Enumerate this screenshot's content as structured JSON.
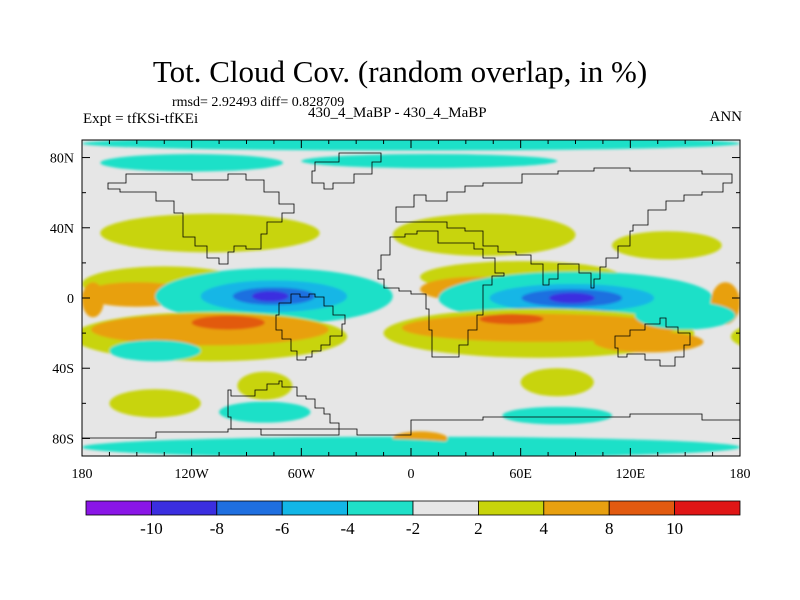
{
  "chart_data": {
    "type": "heatmap",
    "title": "Tot. Cloud Cov. (random overlap, in %)",
    "stats_text": "rmsd= 2.92493 diff= 0.828709",
    "expt_text": "Expt = tfKSi-tfKEi",
    "cases_text": "430_4_MaBP - 430_4_MaBP",
    "season": "ANN",
    "rmsd": 2.92493,
    "diff": 0.828709,
    "x_range": [
      -180,
      180
    ],
    "y_range": [
      -90,
      90
    ],
    "x_ticks": [
      -180,
      -120,
      -60,
      0,
      60,
      120,
      180
    ],
    "x_tick_labels": [
      "180",
      "120W",
      "60W",
      "0",
      "60E",
      "120E",
      "180"
    ],
    "y_ticks": [
      80,
      40,
      0,
      -40,
      -80
    ],
    "y_tick_labels": [
      "80N",
      "40N",
      "0",
      "40S",
      "80S"
    ],
    "colorbar": {
      "levels": [
        -10,
        -8,
        -6,
        -4,
        -2,
        2,
        4,
        8,
        10
      ],
      "labels": [
        "-10",
        "-8",
        "-6",
        "-4",
        "-2",
        "2",
        "4",
        "8",
        "10"
      ],
      "colors": [
        "#8a16e6",
        "#3b2ee0",
        "#1f6fe0",
        "#12b6e6",
        "#1fe0c8",
        "#e6e6e6",
        "#c8d40a",
        "#e8a010",
        "#e25a10",
        "#e01616"
      ]
    },
    "features": [
      {
        "name": "polar-south-band",
        "lon": 0,
        "lat": -85,
        "w": 360,
        "h": 6,
        "value": -3
      },
      {
        "name": "north-arctic-band",
        "lon": 0,
        "lat": 88,
        "w": 360,
        "h": 4,
        "value": -3
      },
      {
        "name": "north-band-west",
        "lon": -120,
        "lat": 77,
        "w": 100,
        "h": 5,
        "value": -3
      },
      {
        "name": "north-band-mid",
        "lon": 10,
        "lat": 78,
        "w": 140,
        "h": 4,
        "value": -3
      },
      {
        "name": "nh-yellow-west",
        "lon": -110,
        "lat": 37,
        "w": 120,
        "h": 11,
        "value": 3
      },
      {
        "name": "nh-yellow-east",
        "lon": 40,
        "lat": 36,
        "w": 100,
        "h": 12,
        "value": 3
      },
      {
        "name": "nh-yellow-pacific",
        "lon": 140,
        "lat": 30,
        "w": 60,
        "h": 8,
        "value": 3
      },
      {
        "name": "n-yellow-tropic-west",
        "lon": -135,
        "lat": 8,
        "w": 90,
        "h": 10,
        "value": 3
      },
      {
        "name": "n-yellow-tropic-east",
        "lon": 60,
        "lat": 12,
        "w": 110,
        "h": 9,
        "value": 3
      },
      {
        "name": "n-orange-west",
        "lon": -150,
        "lat": 2,
        "w": 60,
        "h": 7,
        "value": 6
      },
      {
        "name": "n-orange-east",
        "lon": 35,
        "lat": 5,
        "w": 60,
        "h": 7,
        "value": 6
      },
      {
        "name": "eq-cyan-west",
        "lon": -75,
        "lat": 1,
        "w": 130,
        "h": 16,
        "value": -3
      },
      {
        "name": "eq-lightblue-west",
        "lon": -75,
        "lat": 1,
        "w": 80,
        "h": 9,
        "value": -5
      },
      {
        "name": "eq-blue-west",
        "lon": -75,
        "lat": 1,
        "w": 45,
        "h": 5,
        "value": -7
      },
      {
        "name": "eq-darkblue-west",
        "lon": -77,
        "lat": 1,
        "w": 20,
        "h": 3,
        "value": -9
      },
      {
        "name": "eq-cyan-east",
        "lon": 90,
        "lat": 0,
        "w": 150,
        "h": 15,
        "value": -3
      },
      {
        "name": "eq-lightblue-east",
        "lon": 88,
        "lat": 0,
        "w": 90,
        "h": 8,
        "value": -5
      },
      {
        "name": "eq-blue-east",
        "lon": 88,
        "lat": 0,
        "w": 55,
        "h": 5,
        "value": -7
      },
      {
        "name": "eq-darkblue-east",
        "lon": 88,
        "lat": 0,
        "w": 25,
        "h": 3,
        "value": -9
      },
      {
        "name": "s-yellow-west",
        "lon": -110,
        "lat": -22,
        "w": 150,
        "h": 14,
        "value": 3
      },
      {
        "name": "s-orange-west",
        "lon": -110,
        "lat": -18,
        "w": 130,
        "h": 9,
        "value": 6
      },
      {
        "name": "s-red-west",
        "lon": -100,
        "lat": -14,
        "w": 40,
        "h": 4,
        "value": 9
      },
      {
        "name": "s-yellow-east",
        "lon": 70,
        "lat": -20,
        "w": 170,
        "h": 14,
        "value": 3
      },
      {
        "name": "s-orange-east",
        "lon": 70,
        "lat": -17,
        "w": 150,
        "h": 8,
        "value": 6
      },
      {
        "name": "s-red-east",
        "lon": 55,
        "lat": -12,
        "w": 35,
        "h": 3,
        "value": 9
      },
      {
        "name": "se-orange-strip",
        "lon": 130,
        "lat": -25,
        "w": 60,
        "h": 6,
        "value": 6
      },
      {
        "name": "far-east-orange",
        "lon": 172,
        "lat": -3,
        "w": 16,
        "h": 12,
        "value": 6
      },
      {
        "name": "far-west-orange",
        "lon": -174,
        "lat": -1,
        "w": 12,
        "h": 10,
        "value": 6
      },
      {
        "name": "sh-cyan-west",
        "lon": -140,
        "lat": -30,
        "w": 50,
        "h": 6,
        "value": -3
      },
      {
        "name": "sh-cyan-east",
        "lon": 150,
        "lat": -10,
        "w": 55,
        "h": 8,
        "value": -3
      },
      {
        "name": "sh-yellow-1",
        "lon": -80,
        "lat": -50,
        "w": 30,
        "h": 8,
        "value": 3
      },
      {
        "name": "sh-yellow-2",
        "lon": 80,
        "lat": -48,
        "w": 40,
        "h": 8,
        "value": 3
      },
      {
        "name": "sh-yellow-3",
        "lon": -140,
        "lat": -60,
        "w": 50,
        "h": 8,
        "value": 3
      },
      {
        "name": "sh-cyan-mid",
        "lon": -80,
        "lat": -65,
        "w": 50,
        "h": 6,
        "value": -3
      },
      {
        "name": "sh-cyan-mid2",
        "lon": 80,
        "lat": -67,
        "w": 60,
        "h": 5,
        "value": -3
      },
      {
        "name": "sh-orange-south",
        "lon": 5,
        "lat": -80,
        "w": 30,
        "h": 4,
        "value": 6
      },
      {
        "name": "sh-cyan-south",
        "lon": -30,
        "lat": -84,
        "w": 120,
        "h": 4,
        "value": -3
      }
    ],
    "land_outlines": [
      [
        [
          -100,
          -52
        ],
        [
          -98,
          -55
        ],
        [
          -94,
          -55
        ],
        [
          -90,
          -56
        ],
        [
          -86,
          -53
        ],
        [
          -82,
          -52
        ],
        [
          -78,
          -49
        ],
        [
          -72,
          -48
        ],
        [
          -70,
          -50
        ],
        [
          -66,
          -51
        ],
        [
          -62,
          -55
        ],
        [
          -58,
          -58
        ],
        [
          -52,
          -62
        ],
        [
          -48,
          -66
        ],
        [
          -44,
          -72
        ],
        [
          -40,
          -78
        ],
        [
          -82,
          -78
        ],
        [
          -82,
          -75
        ],
        [
          -95,
          -74
        ],
        [
          -98,
          -68
        ],
        [
          -100,
          -60
        ],
        [
          -100,
          -52
        ]
      ],
      [
        [
          -60,
          0
        ],
        [
          -56,
          2
        ],
        [
          -52,
          0
        ],
        [
          -48,
          -5
        ],
        [
          -42,
          -10
        ],
        [
          -36,
          -15
        ],
        [
          -38,
          -22
        ],
        [
          -44,
          -26
        ],
        [
          -50,
          -30
        ],
        [
          -54,
          -34
        ],
        [
          -58,
          -36
        ],
        [
          -62,
          -30
        ],
        [
          -66,
          -24
        ],
        [
          -70,
          -18
        ],
        [
          -74,
          -10
        ],
        [
          -72,
          -2
        ],
        [
          -66,
          2
        ],
        [
          -60,
          0
        ]
      ],
      [
        [
          -12,
          34
        ],
        [
          -4,
          36
        ],
        [
          4,
          38
        ],
        [
          10,
          38
        ],
        [
          14,
          32
        ],
        [
          20,
          32
        ],
        [
          26,
          31
        ],
        [
          32,
          32
        ],
        [
          34,
          28
        ],
        [
          40,
          22
        ],
        [
          46,
          14
        ],
        [
          51,
          12
        ],
        [
          44,
          8
        ],
        [
          40,
          0
        ],
        [
          40,
          -10
        ],
        [
          36,
          -18
        ],
        [
          32,
          -26
        ],
        [
          26,
          -34
        ],
        [
          18,
          -34
        ],
        [
          12,
          -18
        ],
        [
          10,
          -6
        ],
        [
          8,
          2
        ],
        [
          0,
          4
        ],
        [
          -6,
          5
        ],
        [
          -14,
          10
        ],
        [
          -18,
          16
        ],
        [
          -16,
          24
        ],
        [
          -12,
          34
        ]
      ],
      [
        [
          112,
          -22
        ],
        [
          120,
          -18
        ],
        [
          128,
          -14
        ],
        [
          136,
          -12
        ],
        [
          140,
          -16
        ],
        [
          146,
          -20
        ],
        [
          152,
          -26
        ],
        [
          150,
          -34
        ],
        [
          144,
          -38
        ],
        [
          136,
          -36
        ],
        [
          128,
          -32
        ],
        [
          118,
          -34
        ],
        [
          114,
          -28
        ],
        [
          112,
          -22
        ]
      ],
      [
        [
          -40,
          82
        ],
        [
          -20,
          82
        ],
        [
          -16,
          78
        ],
        [
          -22,
          70
        ],
        [
          -32,
          66
        ],
        [
          -42,
          62
        ],
        [
          -48,
          66
        ],
        [
          -54,
          72
        ],
        [
          -52,
          78
        ],
        [
          -40,
          82
        ]
      ],
      [
        [
          -140,
          70
        ],
        [
          -120,
          68
        ],
        [
          -100,
          70
        ],
        [
          -90,
          68
        ],
        [
          -80,
          60
        ],
        [
          -72,
          54
        ],
        [
          -64,
          48
        ],
        [
          -70,
          44
        ],
        [
          -78,
          36
        ],
        [
          -82,
          28
        ],
        [
          -90,
          30
        ],
        [
          -97,
          26
        ],
        [
          -100,
          20
        ],
        [
          -105,
          22
        ],
        [
          -112,
          30
        ],
        [
          -118,
          34
        ],
        [
          -124,
          40
        ],
        [
          -124,
          48
        ],
        [
          -130,
          55
        ],
        [
          -140,
          60
        ],
        [
          -150,
          60
        ],
        [
          -160,
          62
        ],
        [
          -166,
          66
        ],
        [
          -156,
          70
        ],
        [
          -140,
          70
        ]
      ],
      [
        [
          40,
          66
        ],
        [
          60,
          70
        ],
        [
          80,
          72
        ],
        [
          100,
          74
        ],
        [
          120,
          72
        ],
        [
          140,
          72
        ],
        [
          160,
          70
        ],
        [
          175,
          66
        ],
        [
          170,
          60
        ],
        [
          160,
          58
        ],
        [
          150,
          55
        ],
        [
          140,
          50
        ],
        [
          130,
          42
        ],
        [
          122,
          38
        ],
        [
          120,
          30
        ],
        [
          114,
          22
        ],
        [
          106,
          18
        ],
        [
          104,
          10
        ],
        [
          100,
          6
        ],
        [
          98,
          14
        ],
        [
          92,
          20
        ],
        [
          86,
          20
        ],
        [
          80,
          10
        ],
        [
          76,
          8
        ],
        [
          72,
          20
        ],
        [
          66,
          24
        ],
        [
          58,
          26
        ],
        [
          52,
          26
        ],
        [
          48,
          30
        ],
        [
          40,
          38
        ],
        [
          30,
          40
        ],
        [
          26,
          40
        ],
        [
          20,
          44
        ],
        [
          10,
          44
        ],
        [
          2,
          44
        ],
        [
          -6,
          44
        ],
        [
          -8,
          52
        ],
        [
          2,
          58
        ],
        [
          8,
          56
        ],
        [
          12,
          56
        ],
        [
          20,
          60
        ],
        [
          30,
          64
        ],
        [
          40,
          66
        ]
      ],
      [
        [
          -180,
          -80
        ],
        [
          -140,
          -76
        ],
        [
          -100,
          -74
        ],
        [
          -60,
          -74
        ],
        [
          -30,
          -78
        ],
        [
          0,
          -70
        ],
        [
          40,
          -68
        ],
        [
          80,
          -67
        ],
        [
          120,
          -66
        ],
        [
          160,
          -70
        ],
        [
          180,
          -78
        ],
        [
          180,
          -90
        ],
        [
          -180,
          -90
        ],
        [
          -180,
          -80
        ]
      ]
    ]
  }
}
